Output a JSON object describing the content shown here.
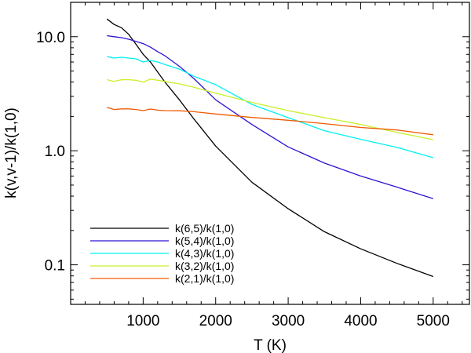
{
  "chart_data": {
    "type": "line",
    "title": "",
    "xlabel": "T (K)",
    "ylabel": "k(v,v-1)/k(1,0)",
    "xlim": [
      0,
      5500
    ],
    "ylim": [
      0.045,
      20
    ],
    "yscale": "log",
    "grid": false,
    "legend_position": "bottom-left",
    "x_ticks": [
      {
        "value": 1000,
        "label": "1000"
      },
      {
        "value": 2000,
        "label": "2000"
      },
      {
        "value": 3000,
        "label": "3000"
      },
      {
        "value": 4000,
        "label": "4000"
      },
      {
        "value": 5000,
        "label": "5000"
      }
    ],
    "y_ticks": [
      {
        "value": 0.1,
        "label": "0.1"
      },
      {
        "value": 1,
        "label": "1.0"
      },
      {
        "value": 10,
        "label": "10.0"
      }
    ],
    "series": [
      {
        "name": "k(6,5)/k(1,0)",
        "color": "#000000",
        "x": [
          500,
          600,
          700,
          800,
          900,
          1000,
          1100,
          1200,
          1300,
          1500,
          1700,
          2000,
          2500,
          3000,
          3500,
          4000,
          4500,
          5000
        ],
        "y": [
          14.3,
          12.8,
          12.0,
          10.5,
          8.6,
          7.0,
          6.0,
          4.9,
          4.0,
          2.8,
          1.9,
          1.1,
          0.53,
          0.31,
          0.195,
          0.138,
          0.103,
          0.079
        ]
      },
      {
        "name": "k(5,4)/k(1,0)",
        "color": "#2c14d4",
        "x": [
          500,
          600,
          700,
          800,
          900,
          1000,
          1100,
          1200,
          1300,
          1500,
          1700,
          2000,
          2500,
          3000,
          3500,
          4000,
          4500,
          5000
        ],
        "y": [
          10.2,
          10.0,
          9.8,
          9.5,
          9.1,
          8.7,
          8.1,
          7.4,
          6.8,
          5.5,
          4.3,
          2.8,
          1.7,
          1.08,
          0.78,
          0.6,
          0.48,
          0.38
        ]
      },
      {
        "name": "k(4,3)/k(1,0)",
        "color": "#00f0f0",
        "x": [
          500,
          600,
          700,
          800,
          900,
          1000,
          1100,
          1200,
          1300,
          1500,
          1700,
          2000,
          2500,
          3000,
          3500,
          4000,
          4500,
          5000
        ],
        "y": [
          6.7,
          6.5,
          6.6,
          6.5,
          6.4,
          6.0,
          6.2,
          6.0,
          5.7,
          5.2,
          4.5,
          3.8,
          2.55,
          1.95,
          1.5,
          1.26,
          1.07,
          0.87
        ]
      },
      {
        "name": "k(3,2)/k(1,0)",
        "color": "#c8f028",
        "x": [
          500,
          600,
          700,
          800,
          900,
          1000,
          1100,
          1200,
          1300,
          1500,
          1700,
          2000,
          2500,
          3000,
          3500,
          4000,
          4500,
          5000
        ],
        "y": [
          4.2,
          4.05,
          4.2,
          4.2,
          4.15,
          4.0,
          4.25,
          4.15,
          4.05,
          3.85,
          3.6,
          3.2,
          2.65,
          2.25,
          1.95,
          1.7,
          1.45,
          1.25
        ]
      },
      {
        "name": "k(2,1)/k(1,0)",
        "color": "#f05a00",
        "x": [
          500,
          600,
          700,
          800,
          900,
          1000,
          1100,
          1200,
          1300,
          1500,
          1700,
          2000,
          2500,
          3000,
          3500,
          4000,
          4500,
          5000
        ],
        "y": [
          2.4,
          2.3,
          2.33,
          2.33,
          2.3,
          2.25,
          2.32,
          2.27,
          2.25,
          2.24,
          2.2,
          2.1,
          1.96,
          1.85,
          1.73,
          1.6,
          1.52,
          1.38
        ]
      }
    ]
  }
}
